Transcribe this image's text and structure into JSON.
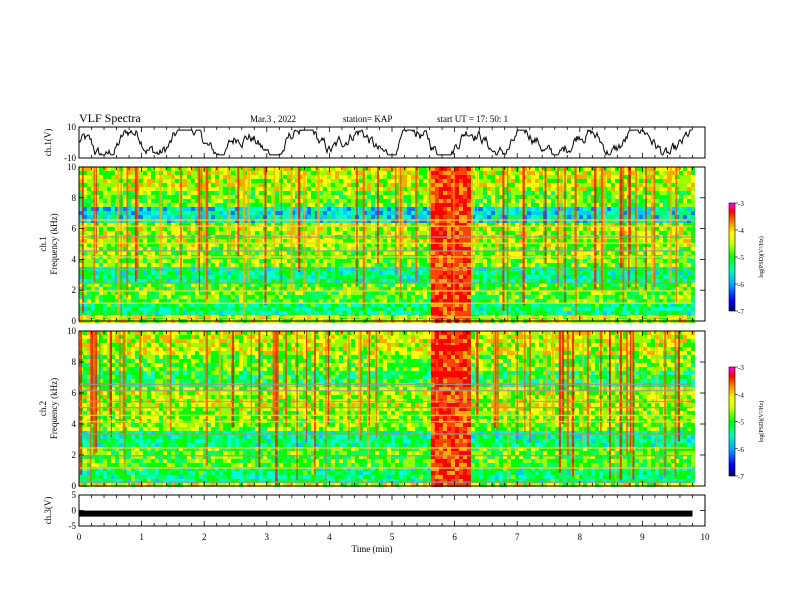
{
  "header": {
    "title": "VLF Spectra",
    "date": "Mar.3 , 2022",
    "station": "station= KAP",
    "start": "start UT = 17: 50: 1"
  },
  "chart_data": [
    {
      "type": "line",
      "panel": "top-waveform",
      "ylabel": "ch.1(V)",
      "ylim": [
        -10,
        10
      ],
      "yticks": [
        "10",
        "-10"
      ],
      "xlim": [
        0,
        10
      ],
      "note_series": "waveform oscillating roughly between -8 and 8 V over 0 to 9.8 min"
    },
    {
      "type": "heatmap",
      "panel": "ch1-spectrogram",
      "ylabel_line1": "ch.1",
      "ylabel_line2": "Frequency (kHz)",
      "ylim": [
        0,
        10
      ],
      "yticks": [
        "0",
        "2",
        "4",
        "6",
        "8",
        "10"
      ],
      "xlim": [
        0,
        10
      ],
      "data_x_end": 9.8,
      "colorbar": {
        "label": "log(PSD)(V²/Hz)",
        "range": [
          -7,
          -3
        ],
        "ticks": [
          "-3",
          "-4",
          "-5",
          "-6",
          "-7"
        ],
        "colors": [
          "#000080",
          "#0000ff",
          "#00aaff",
          "#00ffaa",
          "#00ff00",
          "#ccff00",
          "#ffff00",
          "#ff8800",
          "#ff0000",
          "#ff00ff"
        ]
      },
      "strong_emission_interval": [
        5.6,
        6.25
      ]
    },
    {
      "type": "heatmap",
      "panel": "ch2-spectrogram",
      "ylabel_line1": "ch.2",
      "ylabel_line2": "Frequency (kHz)",
      "ylim": [
        0,
        10
      ],
      "yticks": [
        "0",
        "2",
        "4",
        "6",
        "8",
        "10"
      ],
      "xlim": [
        0,
        10
      ],
      "data_x_end": 9.8,
      "colorbar": {
        "label": "log(PSD)(V²/Hz)",
        "range": [
          -7,
          -3
        ],
        "ticks": [
          "-3",
          "-4",
          "-5",
          "-6",
          "-7"
        ],
        "colors": [
          "#000080",
          "#0000ff",
          "#00aaff",
          "#00ffaa",
          "#00ff00",
          "#ccff00",
          "#ffff00",
          "#ff8800",
          "#ff0000",
          "#ff00ff"
        ]
      },
      "strong_emission_interval": [
        5.6,
        6.25
      ]
    },
    {
      "type": "line",
      "panel": "bottom-waveform",
      "ylabel": "ch.3(V)",
      "ylim": [
        -5,
        5
      ],
      "yticks": [
        "5",
        "0",
        "-5"
      ],
      "xlim": [
        0,
        10
      ],
      "xlabel": "Time (min)",
      "xticks": [
        "0",
        "1",
        "2",
        "3",
        "4",
        "5",
        "6",
        "7",
        "8",
        "9",
        "10"
      ],
      "series": [
        {
          "x": [
            0,
            9.8
          ],
          "y": [
            -1,
            -1
          ]
        }
      ]
    }
  ]
}
